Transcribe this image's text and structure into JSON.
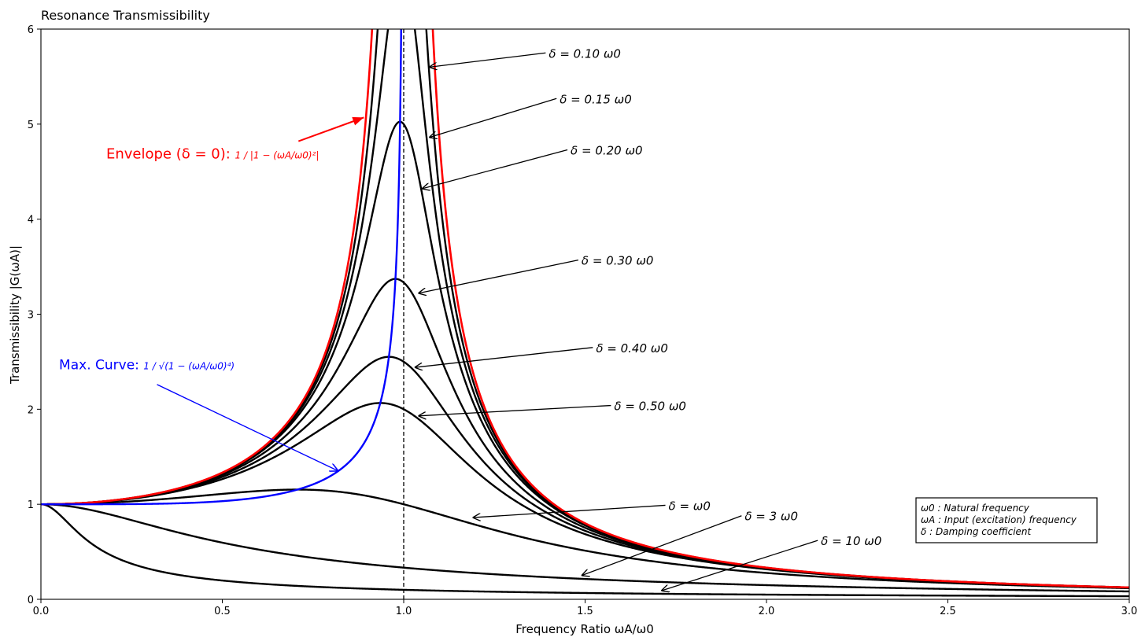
{
  "chart_data": {
    "type": "line",
    "title": "Resonance Transmissibility",
    "xlabel": "Frequency Ratio  ωA/ω0",
    "ylabel": "Transmissibility  |G(ωA)|",
    "xlim": [
      0,
      3
    ],
    "ylim": [
      0,
      6
    ],
    "grid": false,
    "x_ticks": [
      "0.0",
      "0.5",
      "1.0",
      "1.5",
      "2.0",
      "2.5",
      "3.0"
    ],
    "y_ticks": [
      "0",
      "1",
      "2",
      "3",
      "4",
      "5",
      "6"
    ],
    "reference_line": {
      "x": 1.0,
      "style": "dashed",
      "color": "#000000"
    },
    "series": [
      {
        "delta": 0.1,
        "color": "#000000",
        "label": "δ = 0.10 ω0",
        "label_pos": [
          1.4,
          5.7
        ],
        "arrow_to": [
          1.07,
          5.6
        ]
      },
      {
        "delta": 0.15,
        "color": "#000000",
        "label": "δ = 0.15 ω0",
        "label_pos": [
          1.43,
          5.22
        ],
        "arrow_to": [
          1.07,
          4.86
        ]
      },
      {
        "delta": 0.2,
        "color": "#000000",
        "label": "δ = 0.20 ω0",
        "label_pos": [
          1.46,
          4.68
        ],
        "arrow_to": [
          1.05,
          4.32
        ]
      },
      {
        "delta": 0.3,
        "color": "#000000",
        "label": "δ = 0.30 ω0",
        "label_pos": [
          1.49,
          3.52
        ],
        "arrow_to": [
          1.04,
          3.22
        ]
      },
      {
        "delta": 0.4,
        "color": "#000000",
        "label": "δ = 0.40 ω0",
        "label_pos": [
          1.53,
          2.6
        ],
        "arrow_to": [
          1.03,
          2.44
        ]
      },
      {
        "delta": 0.5,
        "color": "#000000",
        "label": "δ = 0.50 ω0",
        "label_pos": [
          1.58,
          1.99
        ],
        "arrow_to": [
          1.04,
          1.93
        ]
      },
      {
        "delta": 1.0,
        "color": "#000000",
        "label": "δ = ω0",
        "label_pos": [
          1.73,
          0.94
        ],
        "arrow_to": [
          1.19,
          0.86
        ]
      },
      {
        "delta": 3.0,
        "color": "#000000",
        "label": "δ = 3 ω0",
        "label_pos": [
          1.94,
          0.83
        ],
        "arrow_to": [
          1.49,
          0.25
        ]
      },
      {
        "delta": 10.0,
        "color": "#000000",
        "label": "δ = 10 ω0",
        "label_pos": [
          2.15,
          0.57
        ],
        "arrow_to": [
          1.71,
          0.09
        ]
      }
    ],
    "envelope": {
      "color": "#ff0000",
      "label": "Envelope (δ = 0): ",
      "formula": "1 / |1 − (ωA/ω0)²|",
      "label_pos": [
        0.18,
        4.64
      ],
      "arrow_from": [
        0.71,
        4.82
      ],
      "arrow_to": [
        0.89,
        5.07
      ]
    },
    "max_curve": {
      "color": "#0000ff",
      "label": "Max. Curve: ",
      "formula": "1 / √(1 − (ωA/ω0)⁴)",
      "label_pos": [
        0.05,
        2.42
      ],
      "arrow_from": [
        0.32,
        2.26
      ],
      "arrow_to": [
        0.82,
        1.35
      ]
    },
    "info_box": {
      "lines": [
        "ω0 : Natural frequency",
        "ωA : Input (excitation) frequency",
        "δ      : Damping coefficient"
      ]
    }
  }
}
